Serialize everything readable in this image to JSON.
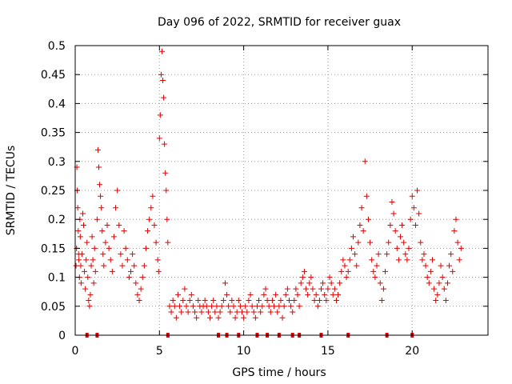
{
  "chart_data": {
    "type": "scatter",
    "title": "Day 096 of 2022, SRMTID for receiver guax",
    "xlabel": "GPS time / hours",
    "ylabel": "SRMTID / TECUs",
    "xlim": [
      0,
      24.5
    ],
    "ylim": [
      0,
      0.5
    ],
    "x_ticks": [
      0,
      5,
      10,
      15,
      20
    ],
    "x_tick_labels": [
      "0",
      "5",
      "10",
      "15",
      "20"
    ],
    "y_ticks": [
      0,
      0.05,
      0.1,
      0.15,
      0.2,
      0.25,
      0.3,
      0.35,
      0.4,
      0.45,
      0.5
    ],
    "y_tick_labels": [
      "0",
      "0.05",
      "0.1",
      "0.15",
      "0.2",
      "0.25",
      "0.3",
      "0.35",
      "0.4",
      "0.45",
      "0.5"
    ],
    "grid": true,
    "marker": "+",
    "color": "#e00000",
    "series": [
      {
        "name": "SRMTID",
        "points": [
          [
            0.05,
            0.12
          ],
          [
            0.08,
            0.15
          ],
          [
            0.1,
            0.29
          ],
          [
            0.12,
            0.25
          ],
          [
            0.15,
            0.22
          ],
          [
            0.18,
            0.18
          ],
          [
            0.2,
            0.14
          ],
          [
            0.22,
            0.13
          ],
          [
            0.25,
            0.1
          ],
          [
            0.28,
            0.2
          ],
          [
            0.3,
            0.17
          ],
          [
            0.33,
            0.12
          ],
          [
            0.35,
            0.09
          ],
          [
            0.4,
            0.14
          ],
          [
            0.45,
            0.21
          ],
          [
            0.5,
            0.19
          ],
          [
            0.55,
            0.11
          ],
          [
            0.6,
            0.08
          ],
          [
            0.65,
            0.13
          ],
          [
            0.7,
            0.16
          ],
          [
            0.75,
            0.1
          ],
          [
            0.8,
            0.06
          ],
          [
            0.85,
            0.05
          ],
          [
            0.9,
            0.07
          ],
          [
            0.95,
            0.12
          ],
          [
            1.0,
            0.17
          ],
          [
            1.05,
            0.13
          ],
          [
            1.1,
            0.09
          ],
          [
            1.15,
            0.15
          ],
          [
            1.2,
            0.11
          ],
          [
            1.3,
            0.2
          ],
          [
            1.35,
            0.32
          ],
          [
            1.4,
            0.29
          ],
          [
            1.45,
            0.26
          ],
          [
            1.5,
            0.24
          ],
          [
            1.55,
            0.22
          ],
          [
            1.6,
            0.18
          ],
          [
            1.65,
            0.14
          ],
          [
            1.7,
            0.12
          ],
          [
            1.8,
            0.16
          ],
          [
            1.9,
            0.19
          ],
          [
            2.0,
            0.15
          ],
          [
            2.1,
            0.13
          ],
          [
            2.2,
            0.11
          ],
          [
            2.3,
            0.17
          ],
          [
            2.4,
            0.22
          ],
          [
            2.5,
            0.25
          ],
          [
            2.6,
            0.19
          ],
          [
            2.7,
            0.14
          ],
          [
            2.8,
            0.12
          ],
          [
            2.9,
            0.18
          ],
          [
            3.0,
            0.15
          ],
          [
            3.1,
            0.13
          ],
          [
            3.2,
            0.1
          ],
          [
            3.3,
            0.11
          ],
          [
            3.4,
            0.14
          ],
          [
            3.5,
            0.12
          ],
          [
            3.6,
            0.09
          ],
          [
            3.7,
            0.07
          ],
          [
            3.8,
            0.06
          ],
          [
            3.9,
            0.08
          ],
          [
            4.0,
            0.1
          ],
          [
            4.1,
            0.12
          ],
          [
            4.2,
            0.15
          ],
          [
            4.3,
            0.18
          ],
          [
            4.4,
            0.2
          ],
          [
            4.5,
            0.22
          ],
          [
            4.6,
            0.24
          ],
          [
            4.7,
            0.19
          ],
          [
            4.8,
            0.16
          ],
          [
            4.9,
            0.13
          ],
          [
            4.95,
            0.11
          ],
          [
            5.0,
            0.34
          ],
          [
            5.05,
            0.38
          ],
          [
            5.1,
            0.45
          ],
          [
            5.15,
            0.49
          ],
          [
            5.2,
            0.44
          ],
          [
            5.25,
            0.41
          ],
          [
            5.3,
            0.33
          ],
          [
            5.35,
            0.28
          ],
          [
            5.4,
            0.25
          ],
          [
            5.45,
            0.2
          ],
          [
            5.5,
            0.16
          ],
          [
            5.6,
            0.05
          ],
          [
            5.7,
            0.04
          ],
          [
            5.8,
            0.06
          ],
          [
            5.9,
            0.05
          ],
          [
            6.0,
            0.03
          ],
          [
            6.1,
            0.07
          ],
          [
            6.2,
            0.05
          ],
          [
            6.3,
            0.04
          ],
          [
            6.4,
            0.06
          ],
          [
            6.5,
            0.08
          ],
          [
            6.6,
            0.05
          ],
          [
            6.7,
            0.04
          ],
          [
            6.8,
            0.06
          ],
          [
            6.9,
            0.07
          ],
          [
            7.0,
            0.05
          ],
          [
            7.1,
            0.04
          ],
          [
            7.2,
            0.03
          ],
          [
            7.3,
            0.06
          ],
          [
            7.4,
            0.05
          ],
          [
            7.5,
            0.04
          ],
          [
            7.6,
            0.05
          ],
          [
            7.7,
            0.06
          ],
          [
            7.8,
            0.05
          ],
          [
            7.9,
            0.04
          ],
          [
            8.0,
            0.03
          ],
          [
            8.1,
            0.05
          ],
          [
            8.2,
            0.06
          ],
          [
            8.3,
            0.04
          ],
          [
            8.4,
            0.05
          ],
          [
            8.5,
            0.03
          ],
          [
            8.6,
            0.04
          ],
          [
            8.7,
            0.05
          ],
          [
            8.8,
            0.06
          ],
          [
            8.9,
            0.09
          ],
          [
            9.0,
            0.07
          ],
          [
            9.1,
            0.05
          ],
          [
            9.2,
            0.04
          ],
          [
            9.3,
            0.06
          ],
          [
            9.4,
            0.05
          ],
          [
            9.5,
            0.03
          ],
          [
            9.6,
            0.04
          ],
          [
            9.7,
            0.06
          ],
          [
            9.8,
            0.05
          ],
          [
            9.9,
            0.04
          ],
          [
            10.0,
            0.03
          ],
          [
            10.1,
            0.05
          ],
          [
            10.2,
            0.04
          ],
          [
            10.3,
            0.06
          ],
          [
            10.4,
            0.07
          ],
          [
            10.5,
            0.05
          ],
          [
            10.6,
            0.04
          ],
          [
            10.7,
            0.03
          ],
          [
            10.8,
            0.05
          ],
          [
            10.9,
            0.06
          ],
          [
            11.0,
            0.04
          ],
          [
            11.1,
            0.05
          ],
          [
            11.2,
            0.07
          ],
          [
            11.3,
            0.08
          ],
          [
            11.4,
            0.06
          ],
          [
            11.5,
            0.05
          ],
          [
            11.6,
            0.04
          ],
          [
            11.7,
            0.06
          ],
          [
            11.8,
            0.05
          ],
          [
            11.9,
            0.07
          ],
          [
            12.0,
            0.04
          ],
          [
            12.1,
            0.05
          ],
          [
            12.2,
            0.06
          ],
          [
            12.3,
            0.03
          ],
          [
            12.4,
            0.05
          ],
          [
            12.5,
            0.07
          ],
          [
            12.6,
            0.08
          ],
          [
            12.7,
            0.06
          ],
          [
            12.8,
            0.05
          ],
          [
            12.9,
            0.04
          ],
          [
            13.0,
            0.06
          ],
          [
            13.1,
            0.08
          ],
          [
            13.2,
            0.07
          ],
          [
            13.3,
            0.05
          ],
          [
            13.4,
            0.09
          ],
          [
            13.5,
            0.1
          ],
          [
            13.6,
            0.11
          ],
          [
            13.7,
            0.08
          ],
          [
            13.8,
            0.07
          ],
          [
            13.9,
            0.09
          ],
          [
            14.0,
            0.1
          ],
          [
            14.1,
            0.08
          ],
          [
            14.2,
            0.06
          ],
          [
            14.3,
            0.07
          ],
          [
            14.4,
            0.05
          ],
          [
            14.5,
            0.06
          ],
          [
            14.6,
            0.08
          ],
          [
            14.7,
            0.09
          ],
          [
            14.8,
            0.07
          ],
          [
            14.9,
            0.06
          ],
          [
            15.0,
            0.08
          ],
          [
            15.1,
            0.1
          ],
          [
            15.2,
            0.09
          ],
          [
            15.3,
            0.07
          ],
          [
            15.4,
            0.08
          ],
          [
            15.5,
            0.06
          ],
          [
            15.6,
            0.07
          ],
          [
            15.7,
            0.09
          ],
          [
            15.8,
            0.11
          ],
          [
            15.9,
            0.13
          ],
          [
            16.0,
            0.12
          ],
          [
            16.1,
            0.1
          ],
          [
            16.2,
            0.11
          ],
          [
            16.3,
            0.13
          ],
          [
            16.4,
            0.15
          ],
          [
            16.5,
            0.17
          ],
          [
            16.6,
            0.14
          ],
          [
            16.7,
            0.12
          ],
          [
            16.8,
            0.16
          ],
          [
            16.9,
            0.19
          ],
          [
            17.0,
            0.22
          ],
          [
            17.1,
            0.18
          ],
          [
            17.2,
            0.3
          ],
          [
            17.3,
            0.24
          ],
          [
            17.4,
            0.2
          ],
          [
            17.5,
            0.16
          ],
          [
            17.6,
            0.13
          ],
          [
            17.7,
            0.11
          ],
          [
            17.8,
            0.1
          ],
          [
            17.9,
            0.12
          ],
          [
            18.0,
            0.14
          ],
          [
            18.1,
            0.09
          ],
          [
            18.2,
            0.06
          ],
          [
            18.3,
            0.08
          ],
          [
            18.4,
            0.11
          ],
          [
            18.5,
            0.14
          ],
          [
            18.6,
            0.16
          ],
          [
            18.7,
            0.19
          ],
          [
            18.8,
            0.23
          ],
          [
            18.9,
            0.21
          ],
          [
            19.0,
            0.18
          ],
          [
            19.1,
            0.15
          ],
          [
            19.2,
            0.13
          ],
          [
            19.3,
            0.17
          ],
          [
            19.4,
            0.19
          ],
          [
            19.5,
            0.16
          ],
          [
            19.6,
            0.14
          ],
          [
            19.7,
            0.13
          ],
          [
            19.8,
            0.15
          ],
          [
            19.9,
            0.2
          ],
          [
            20.0,
            0.24
          ],
          [
            20.1,
            0.22
          ],
          [
            20.2,
            0.19
          ],
          [
            20.3,
            0.25
          ],
          [
            20.4,
            0.21
          ],
          [
            20.5,
            0.16
          ],
          [
            20.6,
            0.13
          ],
          [
            20.7,
            0.14
          ],
          [
            20.8,
            0.12
          ],
          [
            20.9,
            0.1
          ],
          [
            21.0,
            0.09
          ],
          [
            21.1,
            0.11
          ],
          [
            21.2,
            0.13
          ],
          [
            21.3,
            0.08
          ],
          [
            21.4,
            0.06
          ],
          [
            21.5,
            0.07
          ],
          [
            21.6,
            0.09
          ],
          [
            21.7,
            0.12
          ],
          [
            21.8,
            0.1
          ],
          [
            21.9,
            0.08
          ],
          [
            22.0,
            0.06
          ],
          [
            22.1,
            0.09
          ],
          [
            22.2,
            0.12
          ],
          [
            22.3,
            0.14
          ],
          [
            22.4,
            0.11
          ],
          [
            22.5,
            0.18
          ],
          [
            22.6,
            0.2
          ],
          [
            22.7,
            0.16
          ],
          [
            22.8,
            0.13
          ],
          [
            22.9,
            0.15
          ]
        ]
      },
      {
        "name": "zero-level markers",
        "points": [
          [
            0.7,
            0
          ],
          [
            1.3,
            0
          ],
          [
            5.5,
            0
          ],
          [
            8.5,
            0
          ],
          [
            9.0,
            0
          ],
          [
            9.7,
            0
          ],
          [
            10.8,
            0
          ],
          [
            11.4,
            0
          ],
          [
            12.1,
            0
          ],
          [
            12.9,
            0
          ],
          [
            13.3,
            0
          ],
          [
            14.6,
            0
          ],
          [
            16.2,
            0
          ],
          [
            18.5,
            0
          ],
          [
            20.0,
            0
          ]
        ]
      }
    ]
  }
}
